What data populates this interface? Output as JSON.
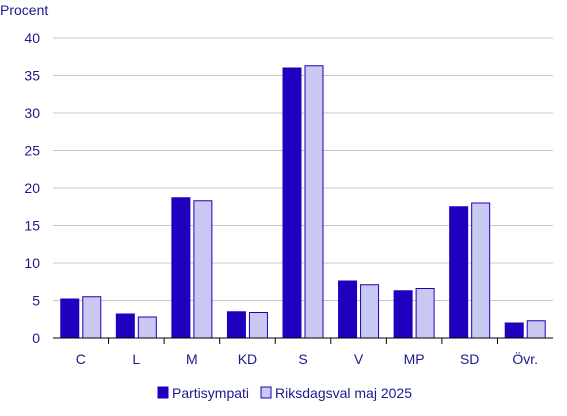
{
  "chart_data": {
    "type": "bar",
    "ylabel": "Procent",
    "ylim": [
      0,
      40
    ],
    "yticks": [
      0,
      5,
      10,
      15,
      20,
      25,
      30,
      35,
      40
    ],
    "grid": "horizontal",
    "legend_position": "bottom",
    "categories": [
      "C",
      "L",
      "M",
      "KD",
      "S",
      "V",
      "MP",
      "SD",
      "Övr."
    ],
    "series": [
      {
        "name": "Partisympati",
        "color": "#1e00be",
        "values": [
          5.2,
          3.2,
          18.7,
          3.5,
          36.0,
          7.6,
          6.3,
          17.5,
          2.0
        ]
      },
      {
        "name": "Riksdagsval maj 2025",
        "color": "#c8c8f0",
        "values": [
          5.5,
          2.8,
          18.3,
          3.4,
          36.3,
          7.1,
          6.6,
          18.0,
          2.3
        ]
      }
    ]
  }
}
